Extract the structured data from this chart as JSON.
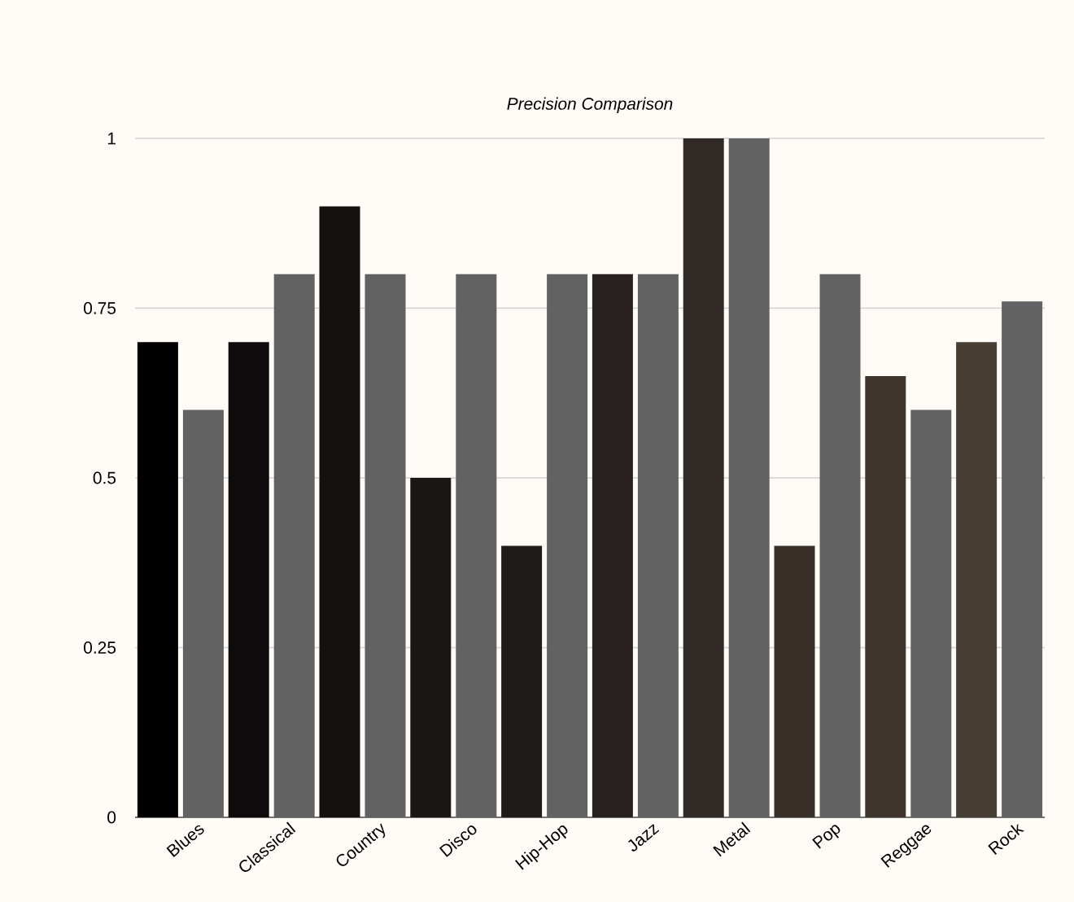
{
  "chart_data": {
    "type": "bar",
    "title": "Precision Comparison",
    "categories": [
      "Blues",
      "Classical",
      "Country",
      "Disco",
      "Hip-Hop",
      "Jazz",
      "Metal",
      "Pop",
      "Reggae",
      "Rock"
    ],
    "series": [
      {
        "colors": [
          "#000000",
          "#0d0b0b",
          "#15110f",
          "#1b1716",
          "#201c19",
          "#2a2220",
          "#322a27",
          "#39302a",
          "#40352c",
          "#473f33"
        ],
        "values": [
          0.7,
          0.7,
          0.9,
          0.5,
          0.4,
          0.8,
          1,
          0.4,
          0.65,
          0.7
        ]
      },
      {
        "color": "#626262",
        "values": [
          0.6,
          0.8,
          0.8,
          0.8,
          0.8,
          0.8,
          1,
          0.8,
          0.6,
          0.76
        ]
      }
    ],
    "ylim": [
      0,
      1
    ],
    "yticks": [
      0,
      0.25,
      0.5,
      0.75,
      1
    ],
    "grid": "y"
  }
}
